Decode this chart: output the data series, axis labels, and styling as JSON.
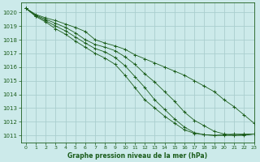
{
  "background_color": "#cceaea",
  "grid_color": "#aacece",
  "line_color": "#1a5c1a",
  "title": "Graphe pression niveau de la mer (hPa)",
  "xlim": [
    -0.5,
    23
  ],
  "ylim": [
    1010.5,
    1020.7
  ],
  "yticks": [
    1011,
    1012,
    1013,
    1014,
    1015,
    1016,
    1017,
    1018,
    1019,
    1020
  ],
  "xticks": [
    0,
    1,
    2,
    3,
    4,
    5,
    6,
    7,
    8,
    9,
    10,
    11,
    12,
    13,
    14,
    15,
    16,
    17,
    18,
    19,
    20,
    21,
    22,
    23
  ],
  "series": [
    [
      1020.3,
      1019.85,
      1019.6,
      1019.4,
      1019.15,
      1018.9,
      1018.6,
      1018.0,
      1017.75,
      1017.55,
      1017.3,
      1016.9,
      1016.6,
      1016.3,
      1016.0,
      1015.7,
      1015.4,
      1015.0,
      1014.6,
      1014.2,
      1013.6,
      1013.1,
      1012.5,
      1011.9
    ],
    [
      1020.3,
      1019.8,
      1019.5,
      1019.2,
      1018.9,
      1018.5,
      1018.0,
      1017.65,
      1017.45,
      1017.2,
      1016.75,
      1016.2,
      1015.5,
      1014.9,
      1014.2,
      1013.5,
      1012.7,
      1012.1,
      1011.7,
      1011.3,
      1011.1,
      1011.0,
      1011.0,
      1011.1
    ],
    [
      1020.3,
      1019.75,
      1019.4,
      1019.0,
      1018.65,
      1018.2,
      1017.75,
      1017.35,
      1017.1,
      1016.7,
      1016.1,
      1015.3,
      1014.5,
      1013.6,
      1012.9,
      1012.2,
      1011.6,
      1011.2,
      1011.05,
      1011.0,
      1011.0,
      1011.0,
      1011.05,
      1011.1
    ],
    [
      1020.3,
      1019.7,
      1019.3,
      1018.8,
      1018.4,
      1017.9,
      1017.45,
      1017.0,
      1016.65,
      1016.2,
      1015.4,
      1014.5,
      1013.6,
      1013.0,
      1012.4,
      1011.9,
      1011.4,
      1011.15,
      1011.05,
      1011.0,
      1011.05,
      1011.1,
      1011.1,
      1011.1
    ]
  ]
}
